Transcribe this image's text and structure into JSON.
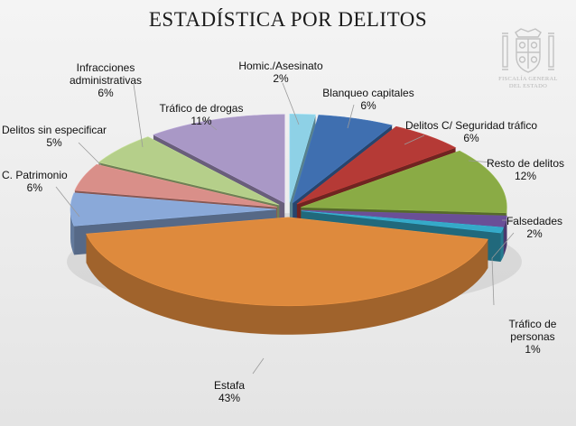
{
  "chart_data": {
    "type": "pie",
    "title": "ESTADÍSTICA POR DELITOS",
    "slices": [
      {
        "label": "Homic./Asesinato",
        "value": 2,
        "value_label": "2%",
        "color": "#8ed1e6"
      },
      {
        "label": "Blanqueo capitales",
        "value": 6,
        "value_label": "6%",
        "color": "#3f6fb0"
      },
      {
        "label": "Delitos C/ Seguridad tráfico",
        "value": 6,
        "value_label": "6%",
        "color": "#b53a36"
      },
      {
        "label": "Resto de delitos",
        "value": 12,
        "value_label": "12%",
        "color": "#8aab45"
      },
      {
        "label": "Falsedades",
        "value": 2,
        "value_label": "2%",
        "color": "#6a4f97"
      },
      {
        "label": "Tráfico de personas",
        "value": 1,
        "value_label": "1%",
        "color": "#35a9c8"
      },
      {
        "label": "Estafa",
        "value": 43,
        "value_label": "43%",
        "color": "#de8a3d"
      },
      {
        "label": "C. Patrimonio",
        "value": 6,
        "value_label": "6%",
        "color": "#8aa9d9"
      },
      {
        "label": "Delitos sin especificar",
        "value": 5,
        "value_label": "5%",
        "color": "#d98f89"
      },
      {
        "label": "Infracciones administrativas",
        "value": 6,
        "value_label": "6%",
        "color": "#b5cf8a"
      },
      {
        "label": "Tráfico de drogas",
        "value": 11,
        "value_label": "11%",
        "color": "#a998c6"
      }
    ],
    "legend": "none",
    "style": "3d-exploded"
  },
  "logo": {
    "line1": "FISCALÍA GENERAL",
    "line2": "DEL ESTADO"
  }
}
